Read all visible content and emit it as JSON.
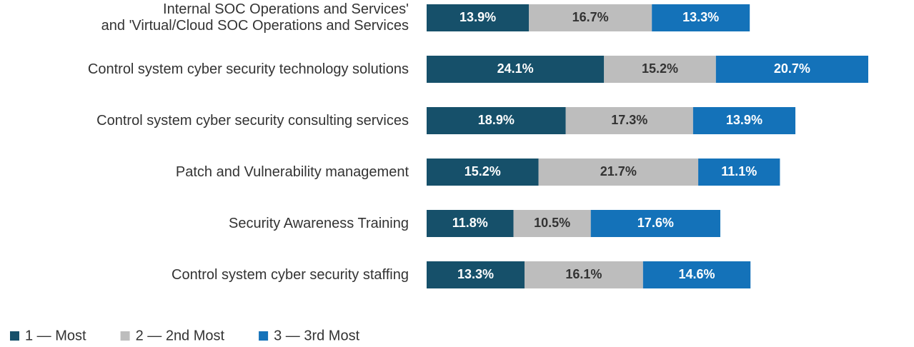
{
  "chart_data": {
    "type": "stacked-bar-horizontal",
    "categories": [
      "Internal SOC Operations and Services'\nand 'Virtual/Cloud SOC Operations and Services",
      "Control system cyber security technology solutions",
      "Control system cyber security consulting services",
      "Patch and Vulnerability management",
      "Security Awareness Training",
      "Control system cyber security staffing"
    ],
    "series": [
      {
        "name": "1 — Most",
        "color": "#16506a",
        "label_color": "#ffffff",
        "values": [
          13.9,
          24.1,
          18.9,
          15.2,
          11.8,
          13.3
        ],
        "value_labels": [
          "13.9%",
          "24.1%",
          "18.9%",
          "15.2%",
          "11.8%",
          "13.3%"
        ]
      },
      {
        "name": "2 — 2nd Most",
        "color": "#bdbdbd",
        "label_color": "#333333",
        "values": [
          16.7,
          15.2,
          17.3,
          21.7,
          10.5,
          16.1
        ],
        "value_labels": [
          "16.7%",
          "15.2%",
          "17.3%",
          "21.7%",
          "10.5%",
          "16.1%"
        ]
      },
      {
        "name": "3 — 3rd Most",
        "color": "#1472b9",
        "label_color": "#ffffff",
        "values": [
          13.3,
          20.7,
          13.9,
          11.1,
          17.6,
          14.6
        ],
        "value_labels": [
          "13.3%",
          "20.7%",
          "13.9%",
          "11.1%",
          "17.6%",
          "14.6%"
        ]
      }
    ],
    "legend": "bottom-left"
  }
}
